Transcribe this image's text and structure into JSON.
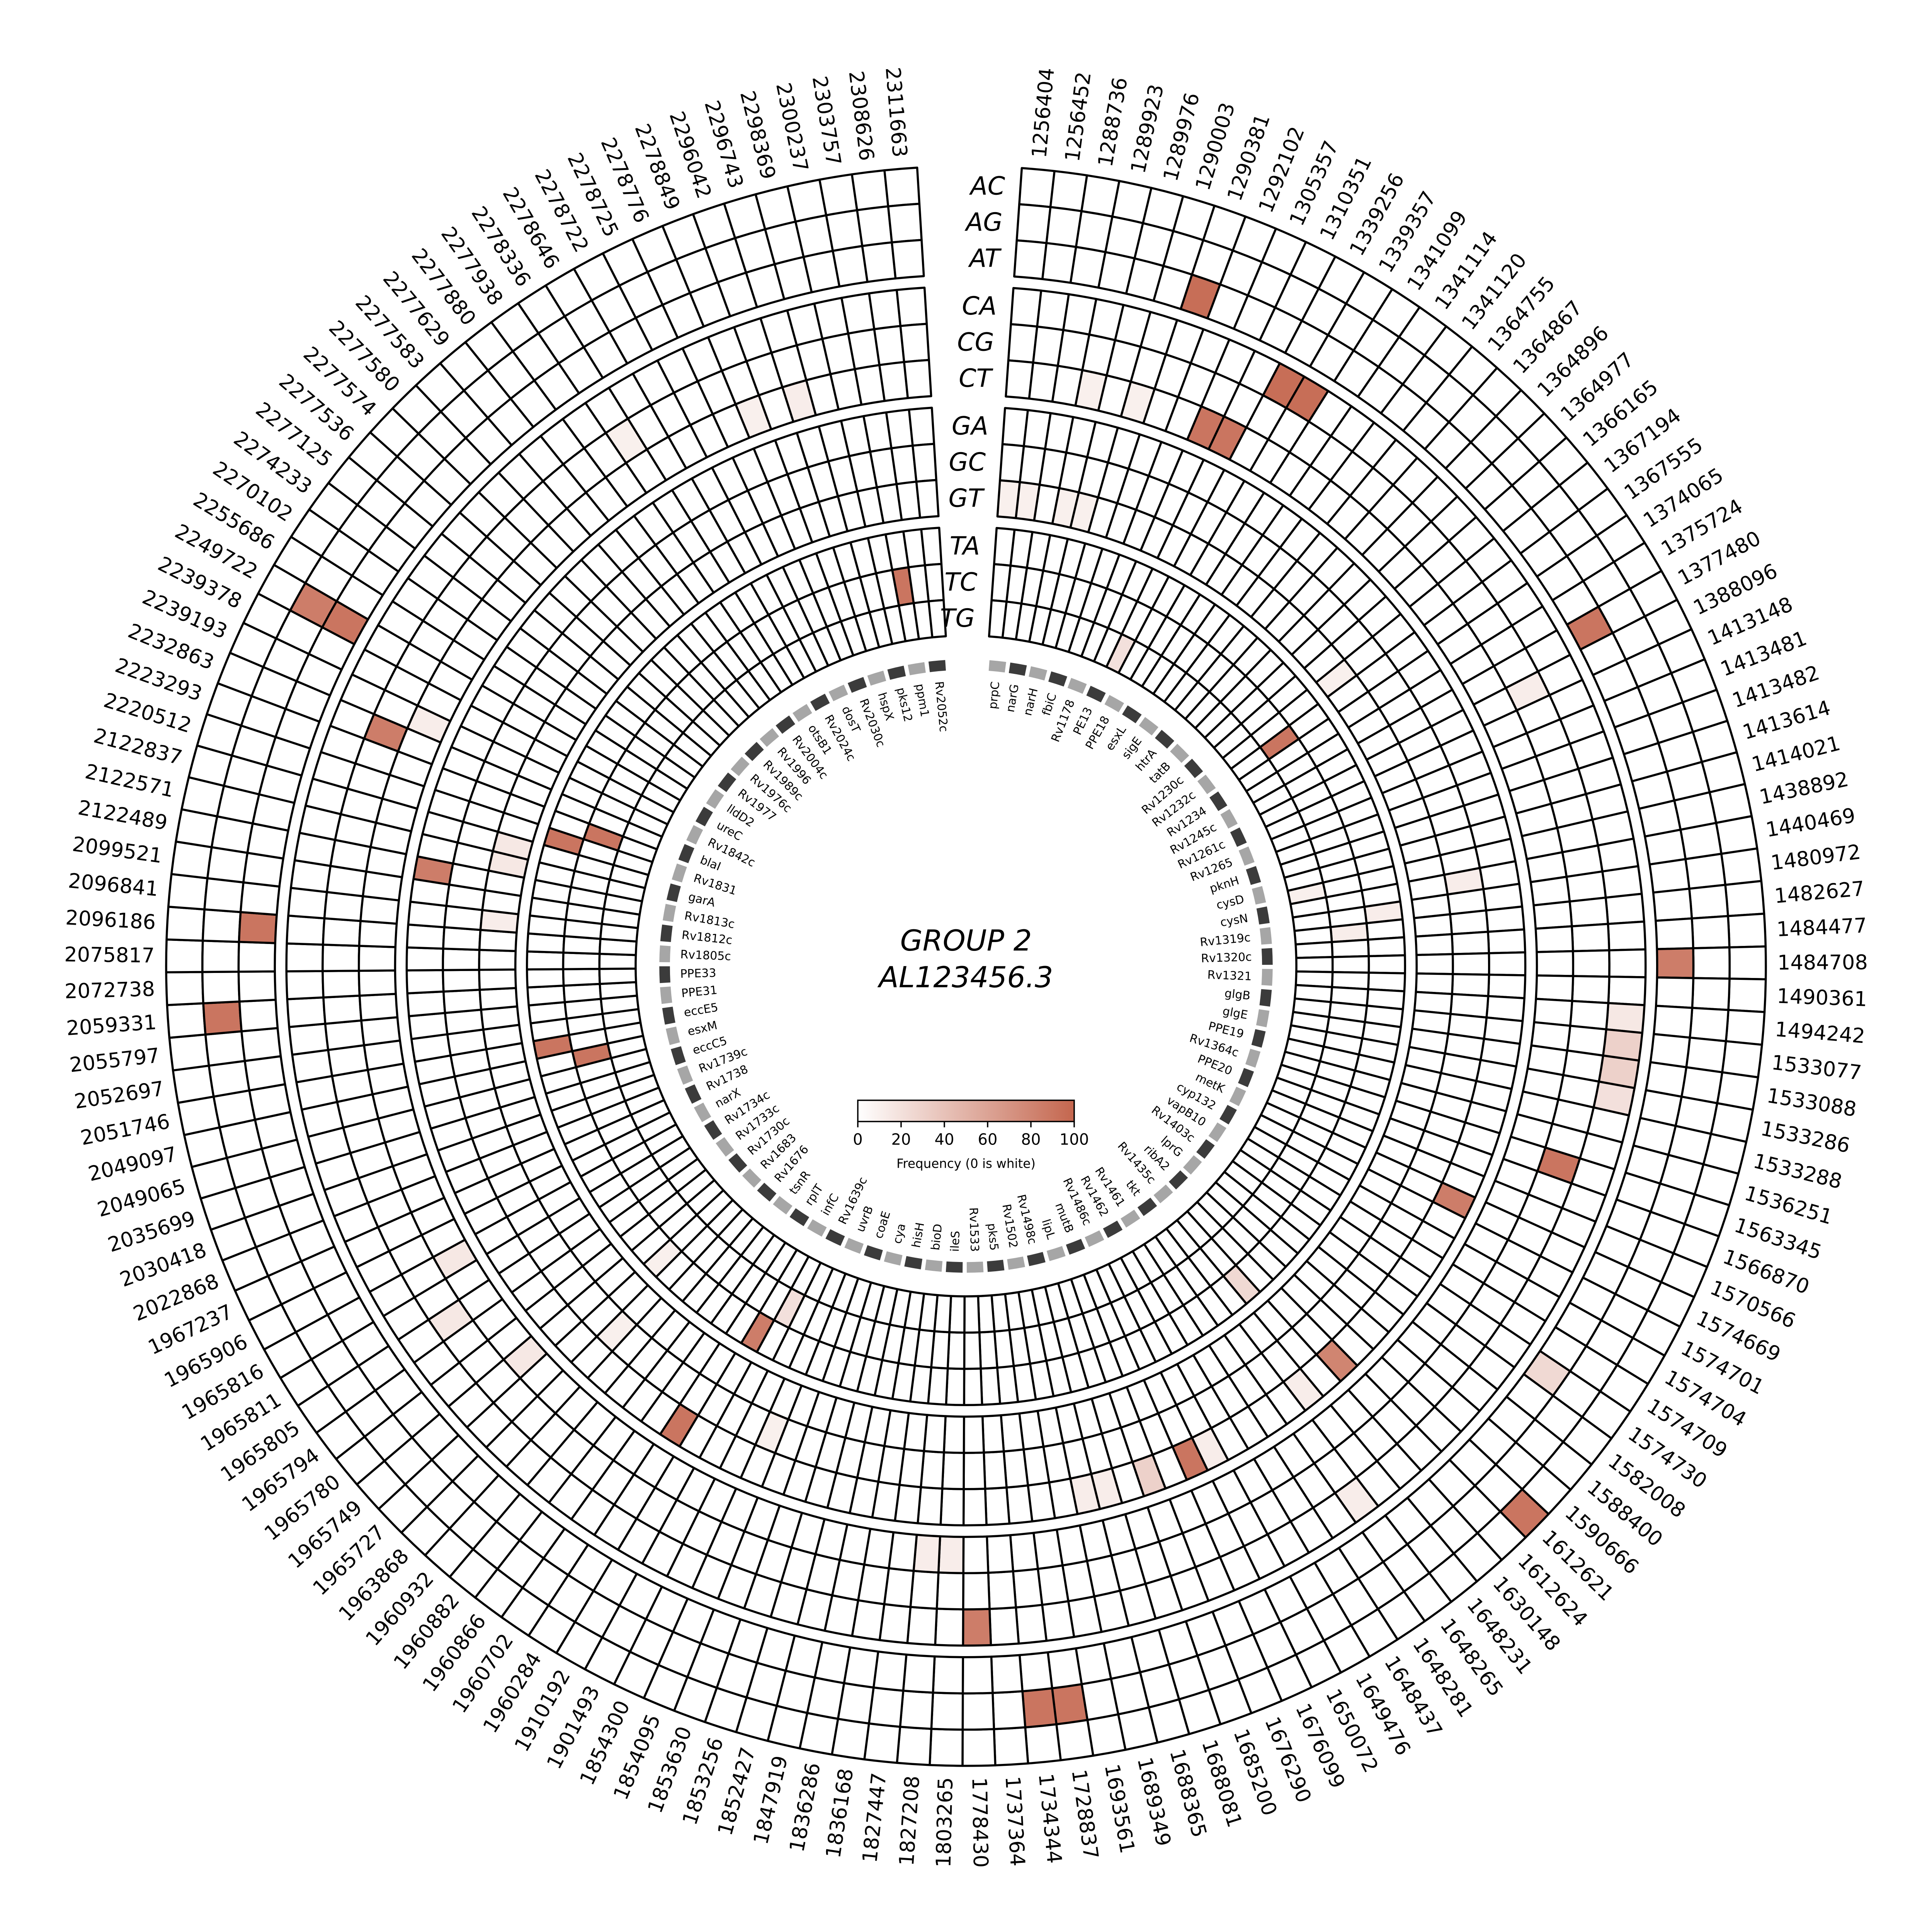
{
  "chart_data": {
    "type": "heatmap",
    "layout": "circular",
    "title": "GROUP 2",
    "subtitle": "AL123456.3",
    "colorbar": {
      "label": "Frequency (0 is white)",
      "ticks": [
        0,
        20,
        40,
        60,
        80,
        100
      ],
      "min": 0,
      "max": 100,
      "min_color": "#ffffff",
      "max_color": "#c4664e"
    },
    "rings": [
      "AC",
      "AG",
      "AT",
      "CA",
      "CG",
      "CT",
      "GA",
      "GC",
      "GT",
      "TA",
      "TC",
      "TG"
    ],
    "ring_group_size": 3,
    "positions": [
      1256404,
      1256452,
      1288736,
      1289923,
      1289976,
      1290003,
      1290381,
      1292102,
      1305357,
      1310351,
      1339256,
      1339357,
      1341099,
      1341114,
      1341120,
      1364755,
      1364867,
      1364896,
      1364977,
      1366165,
      1367194,
      1367555,
      1374065,
      1375724,
      1377480,
      1388096,
      1413148,
      1413481,
      1413482,
      1413614,
      1414021,
      1438892,
      1440469,
      1480972,
      1482627,
      1484477,
      1484708,
      1490361,
      1494242,
      1533077,
      1533088,
      1533286,
      1533288,
      1536251,
      1563345,
      1566870,
      1570566,
      1574669,
      1574701,
      1574704,
      1574709,
      1574730,
      1582008,
      1588400,
      1590666,
      1612621,
      1612624,
      1630148,
      1648231,
      1648265,
      1648281,
      1648437,
      1649476,
      1650072,
      1676099,
      1676290,
      1685200,
      1688081,
      1688365,
      1689349,
      1693561,
      1728837,
      1734344,
      1737364,
      1778430,
      1803265,
      1827208,
      1827447,
      1836168,
      1836286,
      1847919,
      1852427,
      1853256,
      1853630,
      1854095,
      1854300,
      1901493,
      1910192,
      1960284,
      1960702,
      1960866,
      1960882,
      1960932,
      1963868,
      1965727,
      1965749,
      1965780,
      1965794,
      1965805,
      1965811,
      1965816,
      1965906,
      1967237,
      2022868,
      2030418,
      2035699,
      2049065,
      2049097,
      2051746,
      2052697,
      2055797,
      2059331,
      2072738,
      2075817,
      2096186,
      2096841,
      2099521,
      2122489,
      2122571,
      2122837,
      2220512,
      2223293,
      2232863,
      2239193,
      2239378,
      2249722,
      2255686,
      2270102,
      2274233,
      2277125,
      2277536,
      2277574,
      2277580,
      2277583,
      2277629,
      2277880,
      2277938,
      2278336,
      2278646,
      2278722,
      2278725,
      2278776,
      2278849,
      2296042,
      2296743,
      2298369,
      2300237,
      2303757,
      2308626,
      2311663
    ],
    "genes": [
      "prpC",
      "narG",
      "narH",
      "fbiC",
      "Rv1178",
      "PE13",
      "PPE18",
      "esxL",
      "sigE",
      "htrA",
      "tatB",
      "Rv1230c",
      "Rv1232c",
      "Rv1234",
      "Rv1245c",
      "Rv1261c",
      "Rv1265",
      "pknH",
      "cysD",
      "cysN",
      "Rv1319c",
      "Rv1320c",
      "Rv1321",
      "glgB",
      "glgE",
      "PPE19",
      "Rv1364c",
      "PPE20",
      "metK",
      "cyp132",
      "vapB10",
      "Rv1403c",
      "lprG",
      "ribA2",
      "Rv1435c",
      "tkt",
      "Rv1461",
      "Rv1462",
      "Rv1486c",
      "mutB",
      "lipL",
      "Rv1498c",
      "Rv1502",
      "pks5",
      "Rv1533",
      "ileS",
      "bioD",
      "hisH",
      "cya",
      "coaE",
      "uvrB",
      "Rv1639c",
      "infC",
      "rplT",
      "tsnR",
      "Rv1676",
      "Rv1683",
      "Rv1730c",
      "Rv1733c",
      "Rv1734c",
      "narX",
      "Rv1738",
      "Rv1739c",
      "eccC5",
      "esxM",
      "eccE5",
      "PPE31",
      "PPE33",
      "Rv1805c",
      "Rv1812c",
      "Rv1813c",
      "garA",
      "Rv1831",
      "blaI",
      "Rv1842c",
      "ureC",
      "lldD2",
      "Rv1977",
      "Rv1976c",
      "Rv1989c",
      "Rv1996",
      "Rv2004c",
      "otsB1",
      "Rv2024c",
      "dosT",
      "Rv2030c",
      "hspX",
      "pks12",
      "ppm1",
      "Rv2052c"
    ],
    "cells": [
      {
        "r": "AC",
        "p": 1612621,
        "v": 90
      },
      {
        "r": "AG",
        "p": 1728837,
        "v": 90
      },
      {
        "r": "AG",
        "p": 1734344,
        "v": 90
      },
      {
        "r": "AG",
        "p": 2059331,
        "v": 90
      },
      {
        "r": "AG",
        "p": 2249722,
        "v": 85
      },
      {
        "r": "AT",
        "p": 1290381,
        "v": 95
      },
      {
        "r": "AT",
        "p": 1377480,
        "v": 90
      },
      {
        "r": "AT",
        "p": 1484708,
        "v": 85
      },
      {
        "r": "AT",
        "p": 1574730,
        "v": 25
      },
      {
        "r": "AT",
        "p": 2096186,
        "v": 90
      },
      {
        "r": "AT",
        "p": 2249722,
        "v": 90
      },
      {
        "r": "CA",
        "p": 1339256,
        "v": 95
      },
      {
        "r": "CA",
        "p": 1339357,
        "v": 95
      },
      {
        "r": "CA",
        "p": 1494242,
        "v": 15
      },
      {
        "r": "CA",
        "p": 1533077,
        "v": 30
      },
      {
        "r": "CA",
        "p": 1533088,
        "v": 30
      },
      {
        "r": "CA",
        "p": 1533286,
        "v": 20
      },
      {
        "r": "CA",
        "p": 1648265,
        "v": 12
      },
      {
        "r": "CA",
        "p": 1778430,
        "v": 85
      },
      {
        "r": "CG",
        "p": 1388096,
        "v": 12
      },
      {
        "r": "CG",
        "p": 1563345,
        "v": 90
      },
      {
        "r": "CG",
        "p": 1965805,
        "v": 15
      },
      {
        "r": "CG",
        "p": 2232863,
        "v": 85
      },
      {
        "r": "CG",
        "p": 2278336,
        "v": 10
      },
      {
        "r": "CT",
        "p": 1289923,
        "v": 10
      },
      {
        "r": "CT",
        "p": 1290003,
        "v": 10
      },
      {
        "r": "CT",
        "p": 1305357,
        "v": 90
      },
      {
        "r": "CT",
        "p": 1310351,
        "v": 90
      },
      {
        "r": "CT",
        "p": 1803265,
        "v": 12
      },
      {
        "r": "CT",
        "p": 1827208,
        "v": 12
      },
      {
        "r": "CT",
        "p": 1965749,
        "v": 15
      },
      {
        "r": "CT",
        "p": 1965816,
        "v": 15
      },
      {
        "r": "CT",
        "p": 2239193,
        "v": 12
      },
      {
        "r": "CT",
        "p": 2278849,
        "v": 10
      },
      {
        "r": "CT",
        "p": 2296743,
        "v": 12
      },
      {
        "r": "GA",
        "p": 1574669,
        "v": 85
      },
      {
        "r": "GA",
        "p": 1612624,
        "v": 80
      },
      {
        "r": "GA",
        "p": 1648231,
        "v": 12
      },
      {
        "r": "GA",
        "p": 1650072,
        "v": 12
      },
      {
        "r": "GA",
        "p": 1676099,
        "v": 90
      },
      {
        "r": "GA",
        "p": 1685200,
        "v": 30
      },
      {
        "r": "GA",
        "p": 1688365,
        "v": 12
      },
      {
        "r": "GA",
        "p": 1689349,
        "v": 12
      },
      {
        "r": "GA",
        "p": 1960284,
        "v": 90
      },
      {
        "r": "GA",
        "p": 2122489,
        "v": 85
      },
      {
        "r": "GC",
        "p": 1440469,
        "v": 12
      },
      {
        "r": "GC",
        "p": 1854095,
        "v": 10
      },
      {
        "r": "GC",
        "p": 1963868,
        "v": 10
      },
      {
        "r": "GT",
        "p": 1256404,
        "v": 10
      },
      {
        "r": "GT",
        "p": 1256452,
        "v": 10
      },
      {
        "r": "GT",
        "p": 1289923,
        "v": 10
      },
      {
        "r": "GT",
        "p": 1289976,
        "v": 10
      },
      {
        "r": "GT",
        "p": 1367194,
        "v": 10
      },
      {
        "r": "GT",
        "p": 2096841,
        "v": 12
      },
      {
        "r": "GT",
        "p": 2122571,
        "v": 15
      },
      {
        "r": "GT",
        "p": 2122837,
        "v": 15
      },
      {
        "r": "TA",
        "p": 1480972,
        "v": 12
      },
      {
        "r": "TA",
        "p": 1630148,
        "v": 25
      },
      {
        "r": "TA",
        "p": 1910192,
        "v": 85
      },
      {
        "r": "TA",
        "p": 1965727,
        "v": 10
      },
      {
        "r": "TA",
        "p": 2051746,
        "v": 90
      },
      {
        "r": "TA",
        "p": 2220512,
        "v": 90
      },
      {
        "r": "TC",
        "p": 1367555,
        "v": 90
      },
      {
        "r": "TC",
        "p": 1482627,
        "v": 12
      },
      {
        "r": "TC",
        "p": 1901493,
        "v": 20
      },
      {
        "r": "TC",
        "p": 2049097,
        "v": 90
      },
      {
        "r": "TC",
        "p": 2223293,
        "v": 90
      },
      {
        "r": "TC",
        "p": 2303757,
        "v": 90
      },
      {
        "r": "TG",
        "p": 1310351,
        "v": 20
      },
      {
        "r": "TG",
        "p": 1438892,
        "v": 10
      }
    ]
  }
}
